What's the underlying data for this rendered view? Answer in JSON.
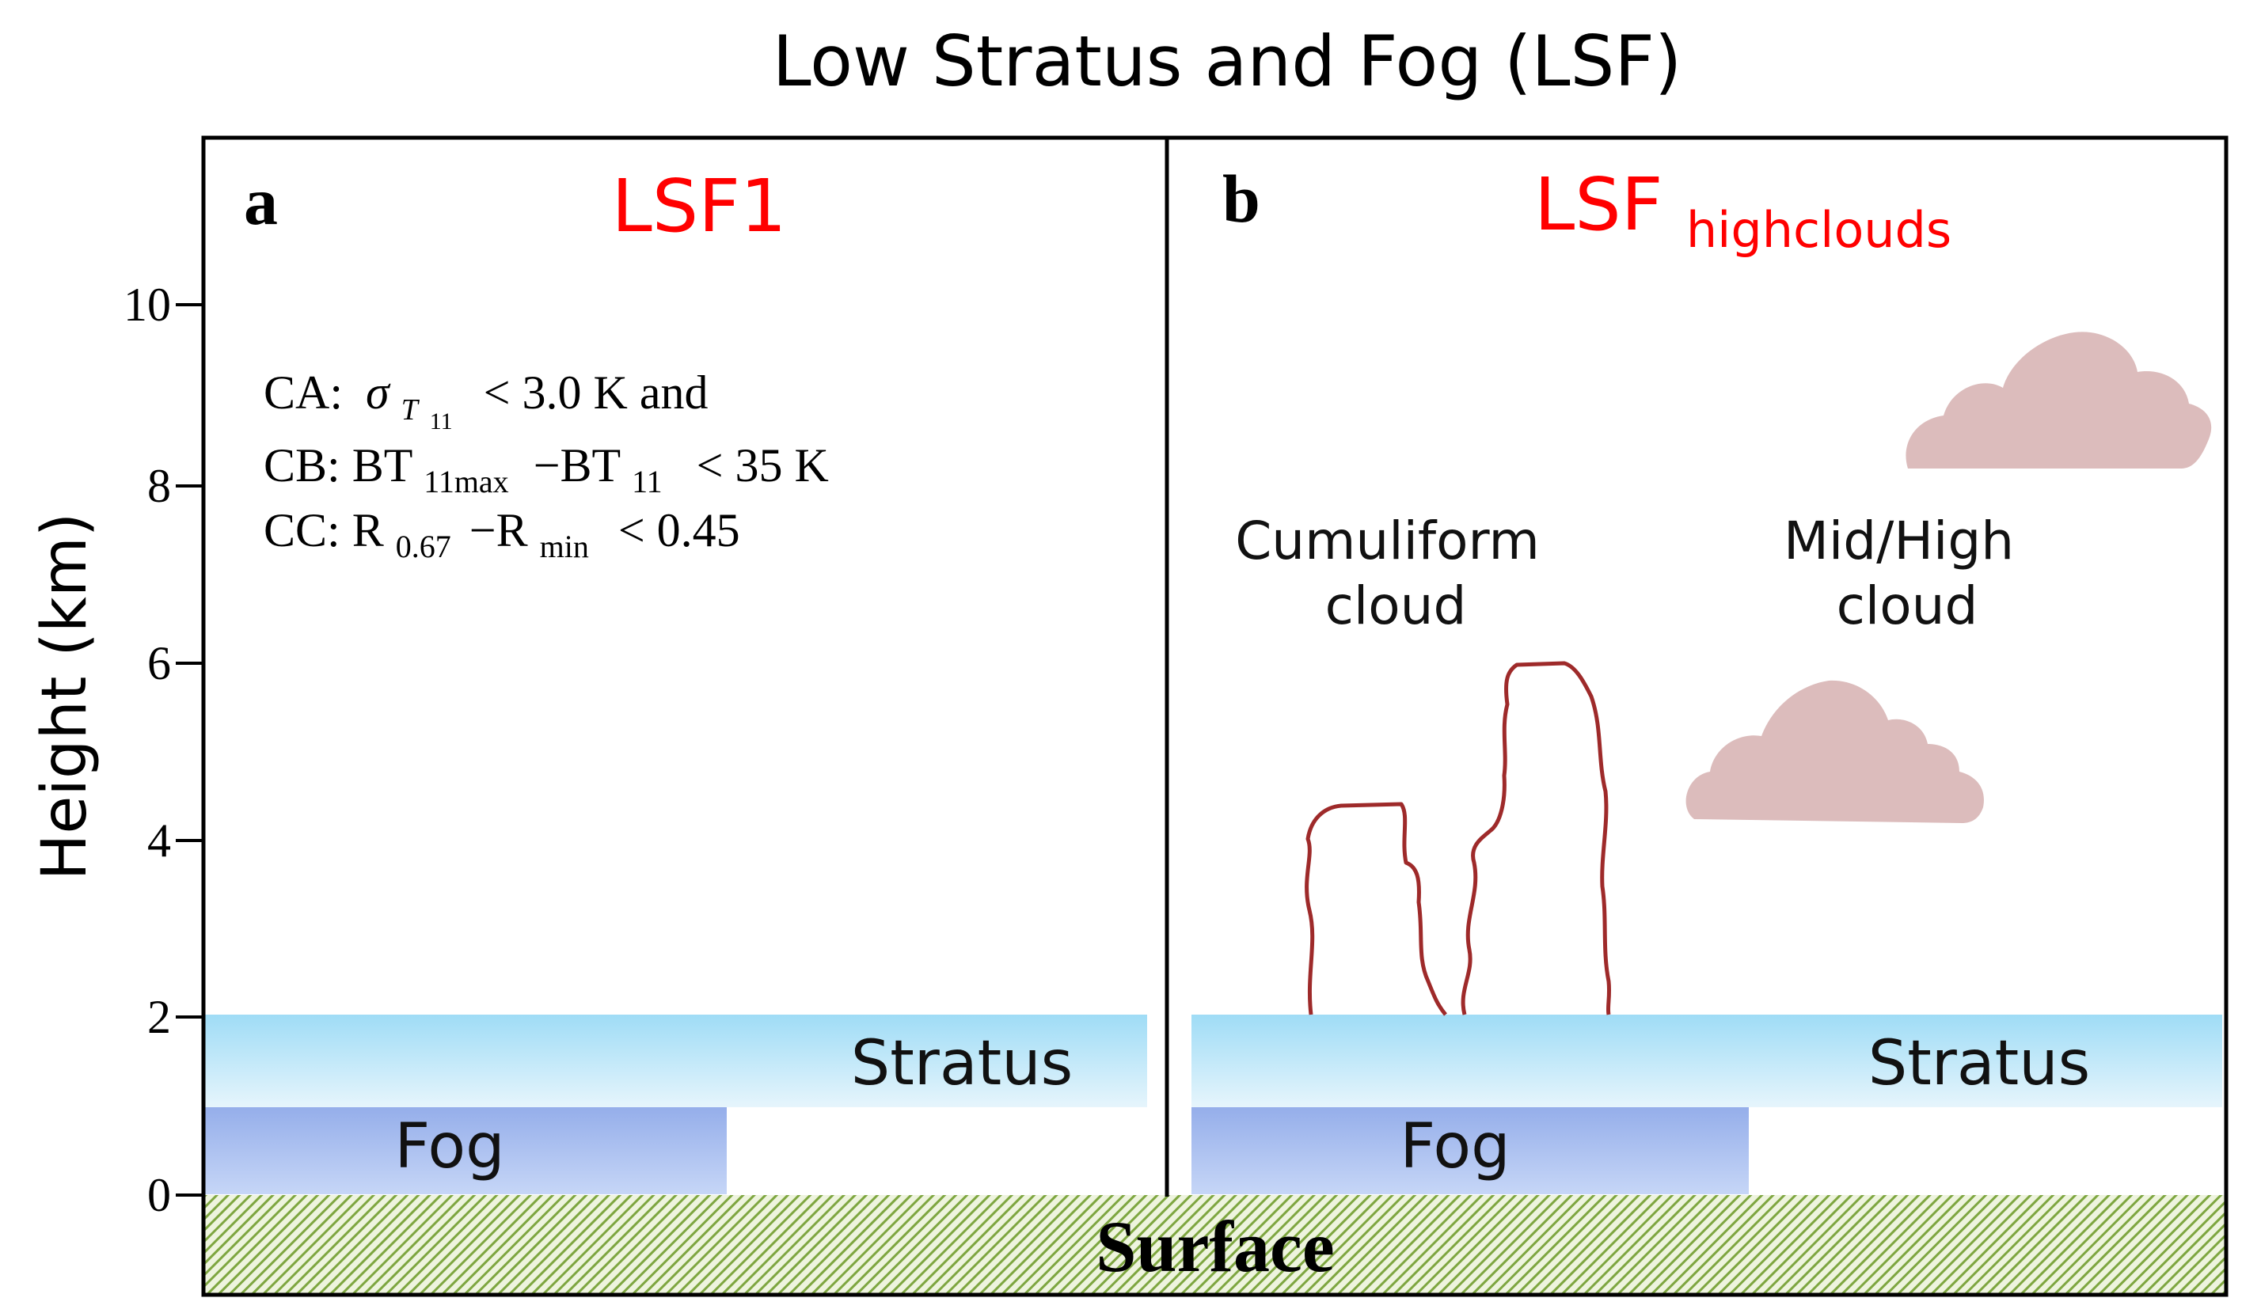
{
  "title": "Low Stratus and Fog (LSF)",
  "y_axis": {
    "label": "Height (km)",
    "ticks": [
      "0",
      "2",
      "4",
      "6",
      "8",
      "10"
    ]
  },
  "panel_a": {
    "letter": "a",
    "name": "LSF1",
    "criteria": {
      "ca": {
        "prefix": "CA:",
        "sym": "σ",
        "sub": "T",
        "subsub": "11",
        "rest": "< 3.0 K and"
      },
      "cb": {
        "prefix": "CB: BT",
        "sub1": "11max",
        "mid": "−BT",
        "sub2": "11",
        "rest": "< 35 K"
      },
      "cc": {
        "prefix": "CC: R",
        "sub1": "0.67",
        "mid": "−R",
        "sub2": "min",
        "rest": "< 0.45"
      }
    },
    "stratus_label": "Stratus",
    "fog_label": "Fog"
  },
  "panel_b": {
    "letter": "b",
    "name_main": "LSF",
    "name_sub": "highclouds",
    "cumuliform_label": [
      "Cumuliform",
      "cloud"
    ],
    "midhigh_label": [
      "Mid/High",
      "cloud"
    ],
    "stratus_label": "Stratus",
    "fog_label": "Fog"
  },
  "surface_label": "Surface",
  "colors": {
    "accent_red": "#ff0000",
    "stratus_fill": "#c8e9fa",
    "fog_fill": "#a9bff0",
    "surface_hatch": "#7ea640",
    "cumuliform_outline": "#9e2a2a",
    "midhigh_cloud": "#dcbcbc"
  }
}
